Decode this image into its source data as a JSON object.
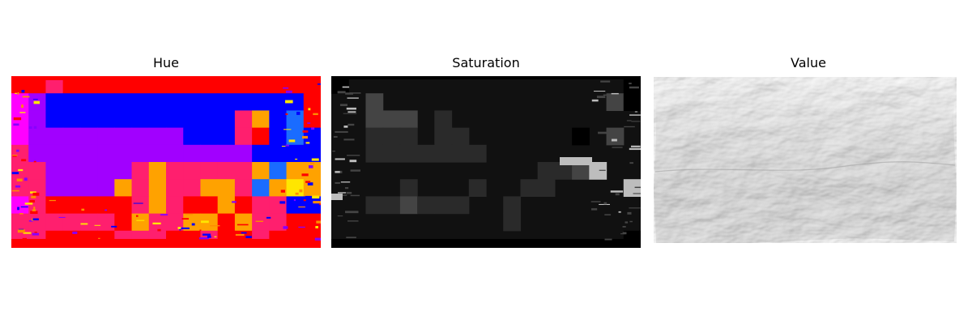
{
  "panels": [
    {
      "title": "Hue",
      "colormap": "hsv",
      "colors": {
        "red": "#ff0000",
        "pink": "#ff1f6e",
        "magenta": "#ff00ff",
        "purple": "#a100ff",
        "violet": "#8800ff",
        "blue": "#0000ff",
        "azure": "#1a6cff",
        "orange": "#ffa200",
        "amber": "#ff8c00",
        "yellow": "#ffe600"
      }
    },
    {
      "title": "Saturation",
      "colormap": "gray",
      "colors": {
        "black": "#000000",
        "dark": "#111111",
        "mid": "#2a2a2a",
        "light": "#444444",
        "highlight": "#bdbdbd"
      }
    },
    {
      "title": "Value",
      "colormap": "gray",
      "colors": {
        "paper": "#e9e9e9",
        "shadow": "#9a9a9a",
        "highlight": "#fafafa"
      }
    }
  ]
}
